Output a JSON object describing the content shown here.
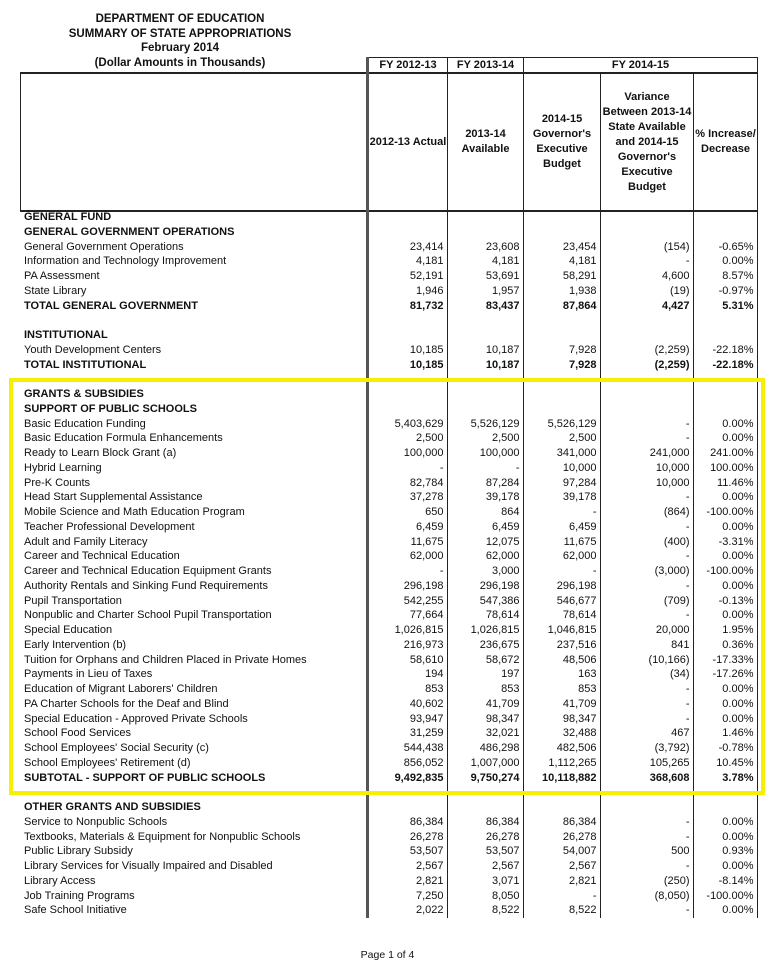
{
  "title": [
    "DEPARTMENT OF EDUCATION",
    "SUMMARY OF STATE APPROPRIATIONS",
    "February 2014",
    "(Dollar Amounts in Thousands)"
  ],
  "fy_headers": [
    "FY 2012-13",
    "FY 2013-14",
    "FY 2014-15"
  ],
  "column_headers": [
    "2012-13 Actual",
    "2013-14 Available",
    "2014-15 Governor's Executive Budget",
    "Variance Between 2013-14 State Available and 2014-15 Governor's Executive Budget",
    "% Increase/ Decrease"
  ],
  "highlight_color": "#f5f000",
  "rows": [
    {
      "type": "heading",
      "label": "GENERAL FUND",
      "v": [
        "",
        "",
        "",
        "",
        ""
      ]
    },
    {
      "type": "heading",
      "label": "GENERAL GOVERNMENT OPERATIONS",
      "v": [
        "",
        "",
        "",
        "",
        ""
      ]
    },
    {
      "type": "item",
      "label": "General Government Operations",
      "v": [
        "23,414",
        "23,608",
        "23,454",
        "(154)",
        "-0.65%"
      ]
    },
    {
      "type": "item",
      "label": "Information and Technology Improvement",
      "v": [
        "4,181",
        "4,181",
        "4,181",
        "-",
        "0.00%"
      ]
    },
    {
      "type": "item",
      "label": "PA Assessment",
      "v": [
        "52,191",
        "53,691",
        "58,291",
        "4,600",
        "8.57%"
      ]
    },
    {
      "type": "item",
      "label": "State Library",
      "v": [
        "1,946",
        "1,957",
        "1,938",
        "(19)",
        "-0.97%"
      ]
    },
    {
      "type": "total",
      "label": "TOTAL GENERAL GOVERNMENT",
      "v": [
        "81,732",
        "83,437",
        "87,864",
        "4,427",
        "5.31%"
      ]
    },
    {
      "type": "blank",
      "label": "",
      "v": [
        "",
        "",
        "",
        "",
        ""
      ]
    },
    {
      "type": "heading",
      "label": "INSTITUTIONAL",
      "v": [
        "",
        "",
        "",
        "",
        ""
      ]
    },
    {
      "type": "item",
      "label": "Youth Development Centers",
      "v": [
        "10,185",
        "10,187",
        "7,928",
        "(2,259)",
        "-22.18%"
      ]
    },
    {
      "type": "total",
      "label": "TOTAL INSTITUTIONAL",
      "v": [
        "10,185",
        "10,187",
        "7,928",
        "(2,259)",
        "-22.18%"
      ]
    },
    {
      "type": "blank",
      "label": "",
      "v": [
        "",
        "",
        "",
        "",
        ""
      ]
    },
    {
      "type": "heading",
      "label": "GRANTS & SUBSIDIES",
      "v": [
        "",
        "",
        "",
        "",
        ""
      ]
    },
    {
      "type": "heading",
      "label": "SUPPORT OF PUBLIC SCHOOLS",
      "v": [
        "",
        "",
        "",
        "",
        ""
      ]
    },
    {
      "type": "item",
      "label": "Basic Education Funding",
      "v": [
        "5,403,629",
        "5,526,129",
        "5,526,129",
        "-",
        "0.00%"
      ]
    },
    {
      "type": "item",
      "label": "Basic Education Formula Enhancements",
      "v": [
        "2,500",
        "2,500",
        "2,500",
        "-",
        "0.00%"
      ]
    },
    {
      "type": "item",
      "label": "Ready to Learn Block Grant (a)",
      "v": [
        "100,000",
        "100,000",
        "341,000",
        "241,000",
        "241.00%"
      ]
    },
    {
      "type": "item",
      "label": "Hybrid Learning",
      "v": [
        "-",
        "-",
        "10,000",
        "10,000",
        "100.00%"
      ]
    },
    {
      "type": "item",
      "label": "Pre-K Counts",
      "v": [
        "82,784",
        "87,284",
        "97,284",
        "10,000",
        "11.46%"
      ]
    },
    {
      "type": "item",
      "label": "Head Start Supplemental Assistance",
      "v": [
        "37,278",
        "39,178",
        "39,178",
        "-",
        "0.00%"
      ]
    },
    {
      "type": "item",
      "label": "Mobile Science and Math Education Program",
      "v": [
        "650",
        "864",
        "-",
        "(864)",
        "-100.00%"
      ]
    },
    {
      "type": "item",
      "label": "Teacher Professional Development",
      "v": [
        "6,459",
        "6,459",
        "6,459",
        "-",
        "0.00%"
      ]
    },
    {
      "type": "item",
      "label": "Adult and Family Literacy",
      "v": [
        "11,675",
        "12,075",
        "11,675",
        "(400)",
        "-3.31%"
      ]
    },
    {
      "type": "item",
      "label": "Career and Technical Education",
      "v": [
        "62,000",
        "62,000",
        "62,000",
        "-",
        "0.00%"
      ]
    },
    {
      "type": "item",
      "label": "Career and Technical Education Equipment Grants",
      "v": [
        "-",
        "3,000",
        "-",
        "(3,000)",
        "-100.00%"
      ]
    },
    {
      "type": "item",
      "label": "Authority Rentals and Sinking Fund Requirements",
      "v": [
        "296,198",
        "296,198",
        "296,198",
        "-",
        "0.00%"
      ]
    },
    {
      "type": "item",
      "label": "Pupil Transportation",
      "v": [
        "542,255",
        "547,386",
        "546,677",
        "(709)",
        "-0.13%"
      ]
    },
    {
      "type": "item",
      "label": "Nonpublic and Charter School Pupil Transportation",
      "v": [
        "77,664",
        "78,614",
        "78,614",
        "-",
        "0.00%"
      ]
    },
    {
      "type": "item",
      "label": "Special Education",
      "v": [
        "1,026,815",
        "1,026,815",
        "1,046,815",
        "20,000",
        "1.95%"
      ]
    },
    {
      "type": "item",
      "label": "Early Intervention (b)",
      "v": [
        "216,973",
        "236,675",
        "237,516",
        "841",
        "0.36%"
      ]
    },
    {
      "type": "item",
      "label": "Tuition for Orphans and Children Placed in Private Homes",
      "v": [
        "58,610",
        "58,672",
        "48,506",
        "(10,166)",
        "-17.33%"
      ]
    },
    {
      "type": "item",
      "label": "Payments in Lieu of Taxes",
      "v": [
        "194",
        "197",
        "163",
        "(34)",
        "-17.26%"
      ]
    },
    {
      "type": "item",
      "label": "Education of Migrant Laborers' Children",
      "v": [
        "853",
        "853",
        "853",
        "-",
        "0.00%"
      ]
    },
    {
      "type": "item",
      "label": "PA Charter Schools for the Deaf and Blind",
      "v": [
        "40,602",
        "41,709",
        "41,709",
        "-",
        "0.00%"
      ]
    },
    {
      "type": "item",
      "label": "Special Education - Approved Private Schools",
      "v": [
        "93,947",
        "98,347",
        "98,347",
        "-",
        "0.00%"
      ]
    },
    {
      "type": "item",
      "label": "School Food Services",
      "v": [
        "31,259",
        "32,021",
        "32,488",
        "467",
        "1.46%"
      ]
    },
    {
      "type": "item",
      "label": "School Employees' Social Security (c)",
      "v": [
        "544,438",
        "486,298",
        "482,506",
        "(3,792)",
        "-0.78%"
      ]
    },
    {
      "type": "item",
      "label": "School Employees' Retirement (d)",
      "v": [
        "856,052",
        "1,007,000",
        "1,112,265",
        "105,265",
        "10.45%"
      ]
    },
    {
      "type": "total",
      "label": "SUBTOTAL - SUPPORT OF PUBLIC SCHOOLS",
      "v": [
        "9,492,835",
        "9,750,274",
        "10,118,882",
        "368,608",
        "3.78%"
      ]
    },
    {
      "type": "blank",
      "label": "",
      "v": [
        "",
        "",
        "",
        "",
        ""
      ]
    },
    {
      "type": "heading",
      "label": "OTHER GRANTS AND SUBSIDIES",
      "v": [
        "",
        "",
        "",
        "",
        ""
      ]
    },
    {
      "type": "item",
      "label": "Service to Nonpublic Schools",
      "v": [
        "86,384",
        "86,384",
        "86,384",
        "-",
        "0.00%"
      ]
    },
    {
      "type": "item",
      "label": "Textbooks, Materials & Equipment for Nonpublic Schools",
      "v": [
        "26,278",
        "26,278",
        "26,278",
        "-",
        "0.00%"
      ]
    },
    {
      "type": "item",
      "label": "Public Library Subsidy",
      "v": [
        "53,507",
        "53,507",
        "54,007",
        "500",
        "0.93%"
      ]
    },
    {
      "type": "item",
      "label": "Library Services for Visually Impaired and Disabled",
      "v": [
        "2,567",
        "2,567",
        "2,567",
        "-",
        "0.00%"
      ]
    },
    {
      "type": "item",
      "label": "Library Access",
      "v": [
        "2,821",
        "3,071",
        "2,821",
        "(250)",
        "-8.14%"
      ]
    },
    {
      "type": "item",
      "label": "Job Training Programs",
      "v": [
        "7,250",
        "8,050",
        "-",
        "(8,050)",
        "-100.00%"
      ]
    },
    {
      "type": "item",
      "label": "Safe School Initiative",
      "v": [
        "2,022",
        "8,522",
        "8,522",
        "-",
        "0.00%"
      ]
    }
  ],
  "footer": "Page 1 of 4"
}
